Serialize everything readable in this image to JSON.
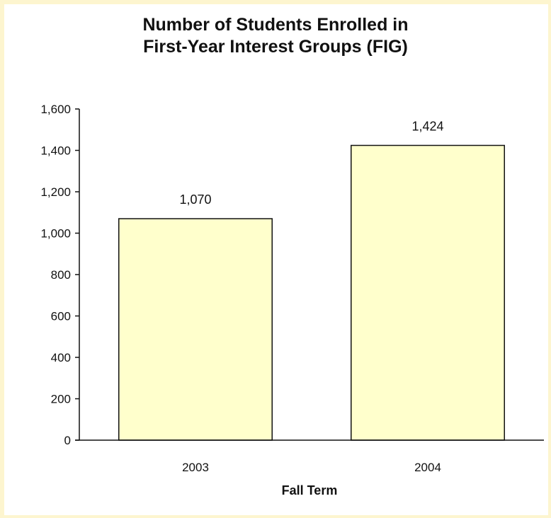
{
  "chart_data": {
    "type": "bar",
    "title_lines": [
      "Number of Students Enrolled in",
      "First-Year Interest Groups (FIG)"
    ],
    "xlabel": "Fall Term",
    "ylabel": "",
    "categories": [
      "2003",
      "2004"
    ],
    "values": [
      1070,
      1424
    ],
    "value_labels": [
      "1,070",
      "1,424"
    ],
    "ylim": [
      0,
      1600
    ],
    "yticks": [
      0,
      200,
      400,
      600,
      800,
      1000,
      1200,
      1400,
      1600
    ],
    "ytick_labels": [
      "0",
      "200",
      "400",
      "600",
      "800",
      "1,000",
      "1,200",
      "1,400",
      "1,600"
    ],
    "grid": false,
    "legend": "none",
    "colors": {
      "bar_fill": "#ffffcc",
      "bar_stroke": "#111111",
      "background": "#fdf5cf"
    }
  }
}
